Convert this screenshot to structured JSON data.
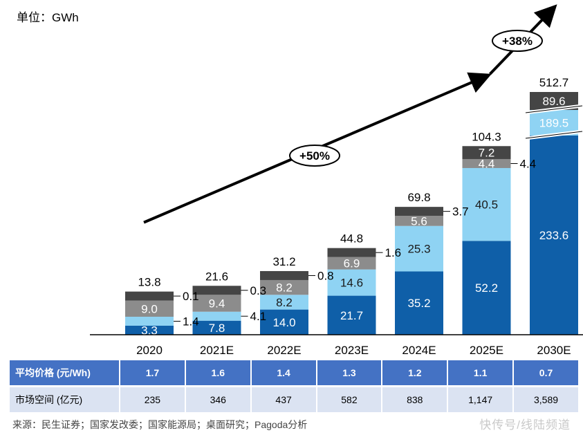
{
  "unit_label": "单位：GWh",
  "chart_data": {
    "type": "bar",
    "stacked": true,
    "categories": [
      "2020",
      "2021E",
      "2022E",
      "2023E",
      "2024E",
      "2025E",
      "2030E"
    ],
    "series": [
      {
        "values": [
          3.3,
          7.8,
          14.0,
          21.7,
          35.2,
          52.2,
          233.6
        ],
        "color": "#0f5fa8"
      },
      {
        "values": [
          1.4,
          4.1,
          8.2,
          14.6,
          25.3,
          40.5,
          189.5
        ],
        "color": "#8fd3f3"
      },
      {
        "values": [
          9.0,
          9.4,
          8.2,
          6.9,
          5.6,
          4.4,
          null
        ],
        "color": "#8c8c8c"
      },
      {
        "values": [
          0.1,
          0.3,
          0.8,
          1.6,
          3.7,
          7.2,
          89.6
        ],
        "color": "#454545"
      }
    ],
    "labels": {
      "bottom": [
        "3.3",
        "7.8",
        "14.0",
        "21.7",
        "35.2",
        "52.2",
        "233.6"
      ],
      "light": [
        "1.4",
        "4.1",
        "8.2",
        "14.6",
        "25.3",
        "40.5",
        "189.5"
      ],
      "gray": [
        "9.0",
        "9.4",
        "8.2",
        "6.9",
        "5.6",
        "4.4",
        ""
      ],
      "top": [
        "0.1",
        "0.3",
        "0.8",
        "1.6",
        "3.7",
        "7.2",
        "89.6"
      ],
      "totals": [
        "13.8",
        "21.6",
        "31.2",
        "44.8",
        "69.8",
        "104.3",
        "512.7"
      ]
    },
    "totals": [
      13.8,
      21.6,
      31.2,
      44.8,
      69.8,
      104.3,
      512.7
    ],
    "broken_axis_category": "2030E",
    "growth_annotations": [
      {
        "text": "+50%",
        "from": "2020",
        "to": "2025E"
      },
      {
        "text": "+38%",
        "from": "2025E",
        "to": "2030E"
      }
    ]
  },
  "table": {
    "rows": [
      {
        "header": "平均价格 (元/Wh)",
        "values": [
          "1.7",
          "1.6",
          "1.4",
          "1.3",
          "1.2",
          "1.1",
          "0.7"
        ]
      },
      {
        "header": "市场空间 (亿元)",
        "values": [
          "235",
          "346",
          "437",
          "582",
          "838",
          "1,147",
          "3,589"
        ]
      }
    ]
  },
  "source": "来源：民生证券；国家发改委；国家能源局；桌面研究；Pagoda分析",
  "watermark": "快传号/线陆频道"
}
